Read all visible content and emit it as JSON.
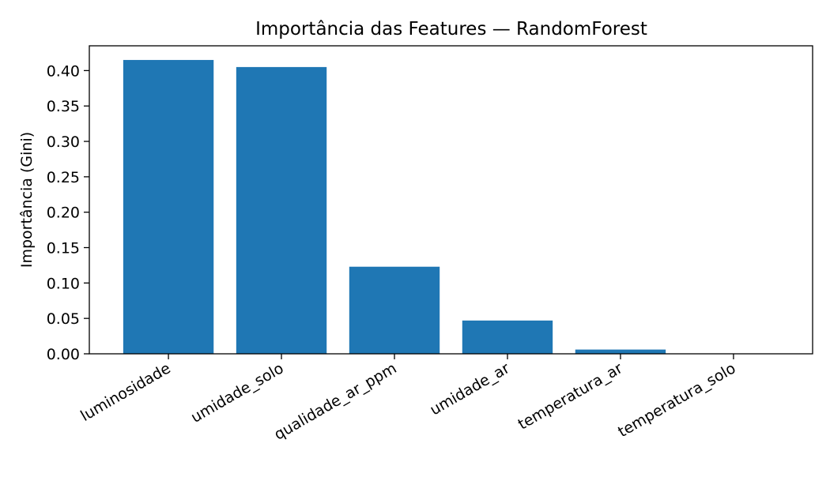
{
  "chart_data": {
    "type": "bar",
    "title": "Importância das Features — RandomForest",
    "xlabel": "",
    "ylabel": "Importância (Gini)",
    "categories": [
      "luminosidade",
      "umidade_solo",
      "qualidade_ar_ppm",
      "umidade_ar",
      "temperatura_ar",
      "temperatura_solo"
    ],
    "values": [
      0.415,
      0.405,
      0.123,
      0.047,
      0.006,
      0.0
    ],
    "ylim": [
      0,
      0.435
    ],
    "yticks": [
      "0.00",
      "0.05",
      "0.10",
      "0.15",
      "0.20",
      "0.25",
      "0.30",
      "0.35",
      "0.40"
    ],
    "bar_color": "#1f77b4",
    "grid": false,
    "legend": "none"
  }
}
